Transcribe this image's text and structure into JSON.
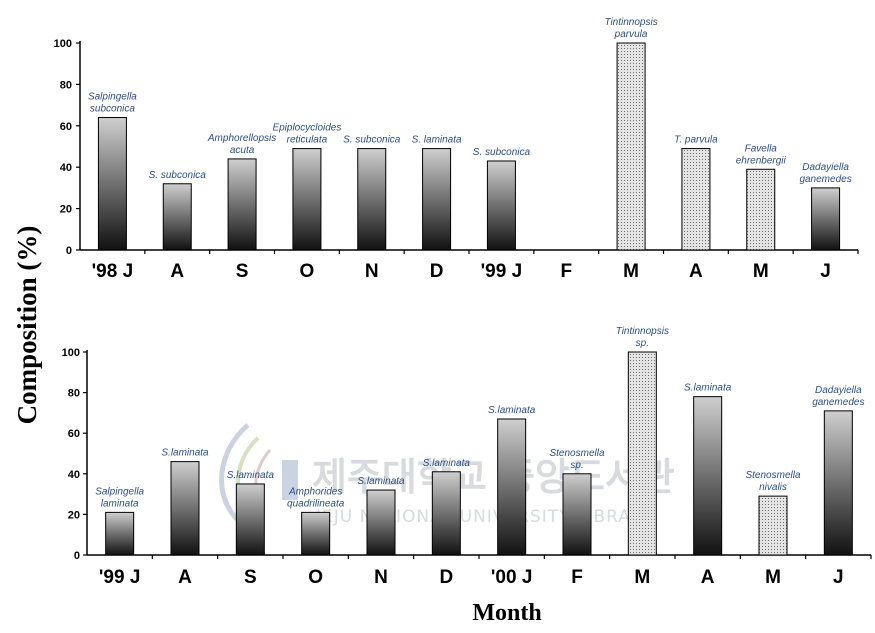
{
  "ylabel": "Composition (%)",
  "xlabel": "Month",
  "watermark": {
    "title": "제주대학교 중앙도서관",
    "subtitle": "JEJU NATIONAL UNIVERSITY LIBRARY"
  },
  "colors": {
    "bar_gradient_top": "#cfcfcf",
    "bar_gradient_bottom": "#111111",
    "dotted_fill": "#e4e4e4",
    "label_text": "#2e4f7f"
  },
  "chart_data": [
    {
      "type": "bar",
      "categories": [
        "'98 J",
        "A",
        "S",
        "O",
        "N",
        "D",
        "'99 J",
        "F",
        "M",
        "A",
        "M",
        "J"
      ],
      "values": [
        64,
        32,
        44,
        49,
        49,
        49,
        43,
        null,
        100,
        49,
        39,
        30
      ],
      "styles": [
        "gradient",
        "gradient",
        "gradient",
        "gradient",
        "gradient",
        "gradient",
        "gradient",
        null,
        "dotted",
        "dotted",
        "dotted",
        "gradient"
      ],
      "labels": [
        [
          "Salpingella",
          "subconica"
        ],
        [
          "S. subconica"
        ],
        [
          "Amphorellopsis",
          "acuta"
        ],
        [
          "Epiplocycloides",
          "reticulata"
        ],
        [
          "S. subconica"
        ],
        [
          "S. laminata"
        ],
        [
          "S. subconica"
        ],
        [],
        [
          "Tintinnopsis",
          "parvula"
        ],
        [
          "T. parvula"
        ],
        [
          "Favella",
          "ehrenbergii"
        ],
        [
          "Dadayiella",
          "ganemedes"
        ]
      ],
      "yticks": [
        0,
        20,
        40,
        60,
        80,
        100
      ],
      "ylim": [
        0,
        100
      ]
    },
    {
      "type": "bar",
      "categories": [
        "'99 J",
        "A",
        "S",
        "O",
        "N",
        "D",
        "'00 J",
        "F",
        "M",
        "A",
        "M",
        "J"
      ],
      "values": [
        21,
        46,
        35,
        21,
        32,
        41,
        67,
        40,
        100,
        78,
        29,
        71
      ],
      "styles": [
        "gradient",
        "gradient",
        "gradient",
        "gradient",
        "gradient",
        "gradient",
        "gradient",
        "gradient",
        "dotted",
        "gradient",
        "dotted",
        "gradient"
      ],
      "labels": [
        [
          "Salpingella",
          "laminata"
        ],
        [
          "S.laminata"
        ],
        [
          "S.laminata"
        ],
        [
          "Amphorides",
          "quadrilineata"
        ],
        [
          "S.laminata"
        ],
        [
          "S.laminata"
        ],
        [
          "S.laminata"
        ],
        [
          "Stenosmella",
          "sp."
        ],
        [
          "Tintinnopsis",
          "sp."
        ],
        [
          "S.laminata"
        ],
        [
          "Stenosmella",
          "nivalis"
        ],
        [
          "Dadayiella",
          "ganemedes"
        ]
      ],
      "yticks": [
        0,
        20,
        40,
        60,
        80,
        100
      ],
      "ylim": [
        0,
        100
      ]
    }
  ]
}
